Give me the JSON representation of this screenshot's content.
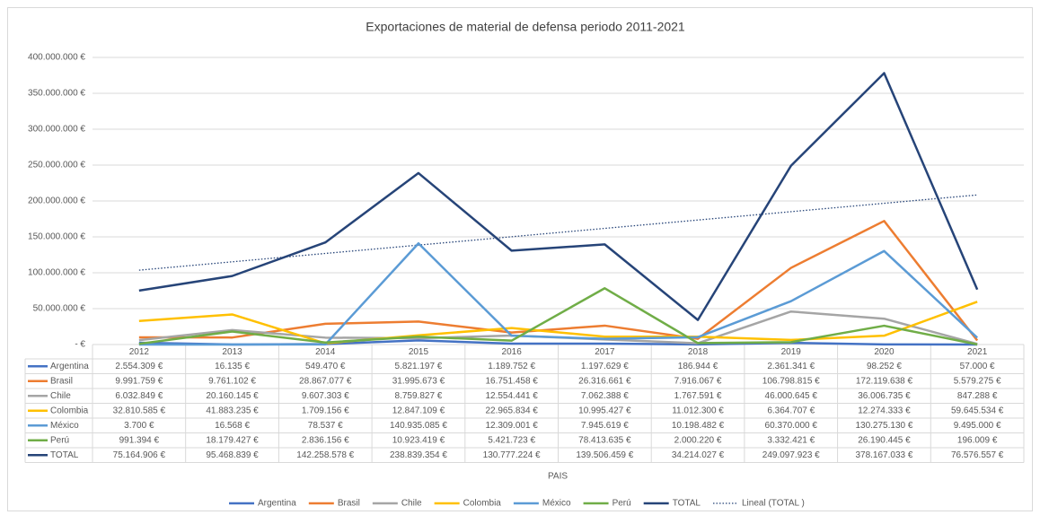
{
  "chart_data": {
    "type": "line",
    "title": "Exportaciones de material de defensa periodo 2011-2021",
    "x_label": "PAIS",
    "categories": [
      "2012",
      "2013",
      "2014",
      "2015",
      "2016",
      "2017",
      "2018",
      "2019",
      "2020",
      "2021"
    ],
    "ylim": [
      0,
      400000000
    ],
    "yticks": [
      {
        "value": 0,
        "label": "- €"
      },
      {
        "value": 50000000,
        "label": "50.000.000 €"
      },
      {
        "value": 100000000,
        "label": "100.000.000 €"
      },
      {
        "value": 150000000,
        "label": "150.000.000 €"
      },
      {
        "value": 200000000,
        "label": "200.000.000 €"
      },
      {
        "value": 250000000,
        "label": "250.000.000 €"
      },
      {
        "value": 300000000,
        "label": "300.000.000 €"
      },
      {
        "value": 350000000,
        "label": "350.000.000 €"
      },
      {
        "value": 400000000,
        "label": "400.000.000 €"
      }
    ],
    "grid": true,
    "legend": "bottom",
    "series": [
      {
        "name": "Argentina",
        "color": "#4472c4",
        "values": [
          2554309,
          16135,
          549470,
          5821197,
          1189752,
          1197629,
          186944,
          2361341,
          98252,
          57000
        ],
        "value_labels": [
          "2.554.309 €",
          "16.135 €",
          "549.470 €",
          "5.821.197 €",
          "1.189.752 €",
          "1.197.629 €",
          "186.944 €",
          "2.361.341 €",
          "98.252 €",
          "57.000 €"
        ]
      },
      {
        "name": "Brasil",
        "color": "#ed7d31",
        "values": [
          9991759,
          9761102,
          28867077,
          31995673,
          16751458,
          26316661,
          7916067,
          106798815,
          172119638,
          5579275
        ],
        "value_labels": [
          "9.991.759 €",
          "9.761.102 €",
          "28.867.077 €",
          "31.995.673 €",
          "16.751.458 €",
          "26.316.661 €",
          "7.916.067 €",
          "106.798.815 €",
          "172.119.638 €",
          "5.579.275 €"
        ]
      },
      {
        "name": "Chile",
        "color": "#a5a5a5",
        "values": [
          6032849,
          20160145,
          9607303,
          8759827,
          12554441,
          7062388,
          1767591,
          46000645,
          36006735,
          847288
        ],
        "value_labels": [
          "6.032.849 €",
          "20.160.145 €",
          "9.607.303 €",
          "8.759.827 €",
          "12.554.441 €",
          "7.062.388 €",
          "1.767.591 €",
          "46.000.645 €",
          "36.006.735 €",
          "847.288 €"
        ]
      },
      {
        "name": "Colombia",
        "color": "#ffc000",
        "values": [
          32810585,
          41883235,
          1709156,
          12847109,
          22965834,
          10995427,
          11012300,
          6364707,
          12274333,
          59645534
        ],
        "value_labels": [
          "32.810.585 €",
          "41.883.235 €",
          "1.709.156 €",
          "12.847.109 €",
          "22.965.834 €",
          "10.995.427 €",
          "11.012.300 €",
          "6.364.707 €",
          "12.274.333 €",
          "59.645.534 €"
        ]
      },
      {
        "name": "México",
        "color": "#5b9bd5",
        "values": [
          3700,
          16568,
          78537,
          140935085,
          12309001,
          7945619,
          10198482,
          60370000,
          130275130,
          9495000
        ],
        "value_labels": [
          "3.700 €",
          "16.568 €",
          "78.537 €",
          "140.935.085 €",
          "12.309.001 €",
          "7.945.619 €",
          "10.198.482 €",
          "60.370.000 €",
          "130.275.130 €",
          "9.495.000 €"
        ]
      },
      {
        "name": "Perú",
        "color": "#70ad47",
        "values": [
          991394,
          18179427,
          2836156,
          10923419,
          5421723,
          78413635,
          2000220,
          3332421,
          26190445,
          196009
        ],
        "value_labels": [
          "991.394 €",
          "18.179.427 €",
          "2.836.156 €",
          "10.923.419 €",
          "5.421.723 €",
          "78.413.635 €",
          "2.000.220 €",
          "3.332.421 €",
          "26.190.445 €",
          "196.009 €"
        ]
      },
      {
        "name": "TOTAL",
        "color": "#264478",
        "values": [
          75164906,
          95468839,
          142258578,
          238839354,
          130777224,
          139506459,
          34214027,
          249097923,
          378167033,
          76576557
        ],
        "value_labels": [
          "75.164.906 €",
          "95.468.839 €",
          "142.258.578 €",
          "238.839.354 €",
          "130.777.224 €",
          "139.506.459 €",
          "34.214.027 €",
          "249.097.923 €",
          "378.167.033 €",
          "76.576.557 €"
        ]
      }
    ],
    "trendline": {
      "name": "Lineal (TOTAL )",
      "color": "#264478",
      "values": [
        103600000,
        208400000
      ]
    }
  }
}
